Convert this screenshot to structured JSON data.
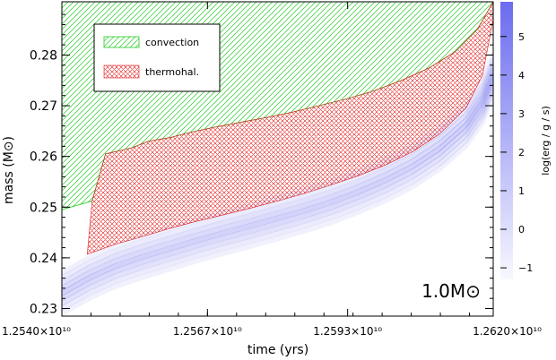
{
  "chart_data": {
    "type": "area",
    "xlabel": "time (yrs)",
    "ylabel": "mass (M⊙)",
    "xlim": [
      12540000000.0,
      12620000000.0
    ],
    "ylim": [
      0.2285,
      0.2905
    ],
    "x_ticks": [
      {
        "value": 12540000000.0,
        "label": "1.2540×10¹⁰"
      },
      {
        "value": 12567000000.0,
        "label": "1.2567×10¹⁰"
      },
      {
        "value": 12593000000.0,
        "label": "1.2593×10¹⁰"
      },
      {
        "value": 12620000000.0,
        "label": "1.2620×10¹⁰"
      }
    ],
    "y_ticks": [
      {
        "value": 0.23,
        "label": "0.23"
      },
      {
        "value": 0.24,
        "label": "0.24"
      },
      {
        "value": 0.25,
        "label": "0.25"
      },
      {
        "value": 0.26,
        "label": "0.26"
      },
      {
        "value": 0.27,
        "label": "0.27"
      },
      {
        "value": 0.28,
        "label": "0.28"
      }
    ],
    "annotation": "1.0M⊙",
    "legend": {
      "placement": "top-left",
      "entries": [
        {
          "name": "convection",
          "color": "#22cc22",
          "pattern": "diagonal-hatch"
        },
        {
          "name": "thermohal.",
          "color": "#e02020",
          "pattern": "cross-hatch"
        }
      ]
    },
    "series": [
      {
        "name": "convection",
        "upper": [
          [
            12540000000.0,
            0.2905
          ],
          [
            12620000000.0,
            0.2905
          ]
        ],
        "lower": [
          [
            12540000000.0,
            0.2495
          ],
          [
            12545600000.0,
            0.2512
          ],
          [
            12548100000.0,
            0.2605
          ],
          [
            12553000000.0,
            0.2617
          ],
          [
            12556000000.0,
            0.263
          ],
          [
            12560000000.0,
            0.2637
          ],
          [
            12564000000.0,
            0.2648
          ],
          [
            12568000000.0,
            0.2657
          ],
          [
            12573000000.0,
            0.2667
          ],
          [
            12578000000.0,
            0.2677
          ],
          [
            12583000000.0,
            0.2688
          ],
          [
            12588000000.0,
            0.2701
          ],
          [
            12593000000.0,
            0.2714
          ],
          [
            12598000000.0,
            0.273
          ],
          [
            12603000000.0,
            0.275
          ],
          [
            12608000000.0,
            0.2774
          ],
          [
            12613000000.0,
            0.2807
          ],
          [
            12617000000.0,
            0.285
          ],
          [
            12620000000.0,
            0.2905
          ]
        ]
      },
      {
        "name": "thermohal.",
        "upper": [
          [
            12544700000.0,
            0.2407
          ],
          [
            12545600000.0,
            0.2512
          ],
          [
            12548100000.0,
            0.2605
          ],
          [
            12553000000.0,
            0.2617
          ],
          [
            12556000000.0,
            0.263
          ],
          [
            12560000000.0,
            0.2637
          ],
          [
            12564000000.0,
            0.2648
          ],
          [
            12568000000.0,
            0.2657
          ],
          [
            12573000000.0,
            0.2667
          ],
          [
            12578000000.0,
            0.2677
          ],
          [
            12583000000.0,
            0.2688
          ],
          [
            12588000000.0,
            0.2701
          ],
          [
            12593000000.0,
            0.2714
          ],
          [
            12598000000.0,
            0.273
          ],
          [
            12603000000.0,
            0.275
          ],
          [
            12608000000.0,
            0.2774
          ],
          [
            12613000000.0,
            0.2807
          ],
          [
            12617000000.0,
            0.285
          ],
          [
            12620000000.0,
            0.2905
          ]
        ],
        "lower": [
          [
            12544700000.0,
            0.2407
          ],
          [
            12550000000.0,
            0.2427
          ],
          [
            12555000000.0,
            0.2442
          ],
          [
            12560000000.0,
            0.2458
          ],
          [
            12565000000.0,
            0.2472
          ],
          [
            12570000000.0,
            0.2485
          ],
          [
            12575000000.0,
            0.2498
          ],
          [
            12580000000.0,
            0.2512
          ],
          [
            12585000000.0,
            0.2527
          ],
          [
            12590000000.0,
            0.2544
          ],
          [
            12595000000.0,
            0.2562
          ],
          [
            12600000000.0,
            0.2583
          ],
          [
            12605000000.0,
            0.2609
          ],
          [
            12610000000.0,
            0.2644
          ],
          [
            12615000000.0,
            0.2696
          ],
          [
            12618000000.0,
            0.276
          ],
          [
            12620000000.0,
            0.287
          ]
        ]
      }
    ],
    "energy_band": {
      "name": "log(erg/g/s)",
      "color": "#7777ee",
      "center": [
        [
          12540000000.0,
          0.233
        ],
        [
          12545000000.0,
          0.236
        ],
        [
          12550000000.0,
          0.2384
        ],
        [
          12555000000.0,
          0.2402
        ],
        [
          12560000000.0,
          0.2418
        ],
        [
          12565000000.0,
          0.2434
        ],
        [
          12570000000.0,
          0.2449
        ],
        [
          12575000000.0,
          0.2463
        ],
        [
          12580000000.0,
          0.2478
        ],
        [
          12585000000.0,
          0.2493
        ],
        [
          12590000000.0,
          0.251
        ],
        [
          12595000000.0,
          0.253
        ],
        [
          12600000000.0,
          0.2553
        ],
        [
          12605000000.0,
          0.258
        ],
        [
          12610000000.0,
          0.2615
        ],
        [
          12615000000.0,
          0.2662
        ],
        [
          12618000000.0,
          0.2708
        ],
        [
          12620000000.0,
          0.276
        ]
      ],
      "half_width": 0.004
    },
    "colorbar": {
      "label": "log(erg / g / s)",
      "range": [
        -1.3,
        5.9
      ],
      "ticks": [
        {
          "value": -1,
          "label": "−1"
        },
        {
          "value": 0,
          "label": "0"
        },
        {
          "value": 1,
          "label": "1"
        },
        {
          "value": 2,
          "label": "2"
        },
        {
          "value": 3,
          "label": "3"
        },
        {
          "value": 4,
          "label": "4"
        },
        {
          "value": 5,
          "label": "5"
        }
      ],
      "colors": [
        "#f8f8ff",
        "#6b6bef"
      ]
    }
  }
}
